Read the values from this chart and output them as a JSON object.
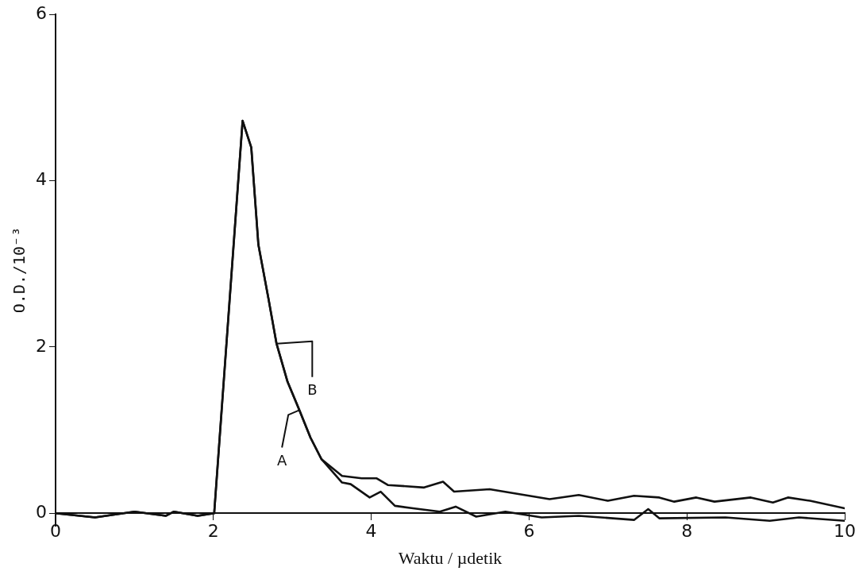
{
  "chart_data": {
    "type": "line",
    "xlabel": "Waktu / µdetik",
    "ylabel": "O.D./10⁻³",
    "xlim": [
      0,
      10
    ],
    "ylim": [
      -0.15,
      6
    ],
    "xticks": [
      0,
      2,
      4,
      6,
      8,
      10
    ],
    "yticks": [
      0,
      2,
      4,
      6
    ],
    "grid": false,
    "legend": false,
    "marker": "none",
    "line_style": "solid",
    "series": [
      {
        "name": "B",
        "color": "#111111",
        "x": [
          0,
          0.5,
          1.0,
          1.4,
          1.5,
          1.8,
          2.01,
          2.37,
          2.48,
          2.57,
          2.7,
          2.8,
          2.94,
          3.09,
          3.23,
          3.37,
          3.63,
          3.88,
          4.07,
          4.21,
          4.67,
          4.91,
          5.05,
          5.5,
          6.26,
          6.63,
          7.0,
          7.33,
          7.65,
          7.84,
          8.12,
          8.35,
          8.81,
          9.09,
          9.28,
          9.56,
          10.0
        ],
        "values": [
          0,
          -0.05,
          0.02,
          -0.03,
          0.02,
          -0.03,
          0,
          4.72,
          4.4,
          3.23,
          2.57,
          2.04,
          1.58,
          1.24,
          0.91,
          0.65,
          0.45,
          0.42,
          0.42,
          0.34,
          0.31,
          0.38,
          0.26,
          0.29,
          0.17,
          0.22,
          0.15,
          0.21,
          0.19,
          0.14,
          0.19,
          0.14,
          0.19,
          0.13,
          0.19,
          0.15,
          0.06
        ]
      },
      {
        "name": "A",
        "color": "#111111",
        "x": [
          0,
          0.5,
          1.0,
          1.4,
          1.5,
          1.8,
          2.01,
          2.37,
          2.48,
          2.57,
          2.7,
          2.8,
          2.94,
          3.09,
          3.23,
          3.37,
          3.63,
          3.74,
          3.98,
          4.12,
          4.3,
          4.53,
          4.87,
          5.07,
          5.33,
          5.7,
          6.16,
          6.63,
          7.33,
          7.51,
          7.65,
          8.49,
          9.05,
          9.42,
          10.0
        ],
        "values": [
          0,
          -0.05,
          0.02,
          -0.03,
          0.02,
          -0.03,
          0,
          4.72,
          4.4,
          3.23,
          2.57,
          2.04,
          1.58,
          1.24,
          0.91,
          0.65,
          0.37,
          0.35,
          0.19,
          0.26,
          0.09,
          0.06,
          0.02,
          0.08,
          -0.04,
          0.02,
          -0.05,
          -0.03,
          -0.08,
          0.05,
          -0.06,
          -0.05,
          -0.09,
          -0.05,
          -0.09
        ]
      }
    ]
  }
}
